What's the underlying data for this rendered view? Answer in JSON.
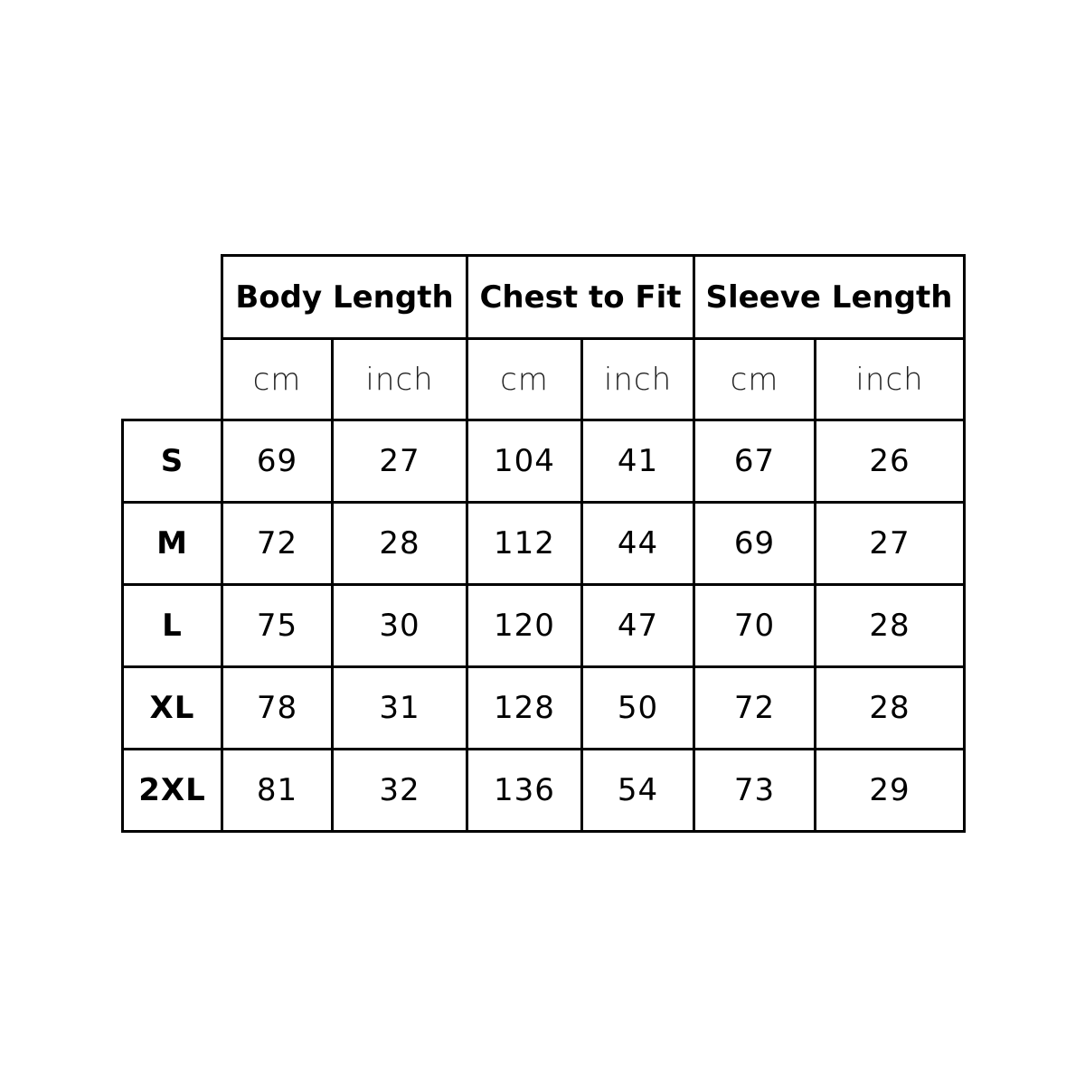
{
  "groups": [
    {
      "label": "Body Length"
    },
    {
      "label": "Chest to Fit"
    },
    {
      "label": "Sleeve Length"
    }
  ],
  "units": [
    "cm",
    "inch",
    "cm",
    "inch",
    "cm",
    "inch"
  ],
  "rows": [
    {
      "size": "S",
      "values": [
        "69",
        "27",
        "104",
        "41",
        "67",
        "26"
      ]
    },
    {
      "size": "M",
      "values": [
        "72",
        "28",
        "112",
        "44",
        "69",
        "27"
      ]
    },
    {
      "size": "L",
      "values": [
        "75",
        "30",
        "120",
        "47",
        "70",
        "28"
      ]
    },
    {
      "size": "XL",
      "values": [
        "78",
        "31",
        "128",
        "50",
        "72",
        "28"
      ]
    },
    {
      "size": "2XL",
      "values": [
        "81",
        "32",
        "136",
        "54",
        "73",
        "29"
      ]
    }
  ]
}
